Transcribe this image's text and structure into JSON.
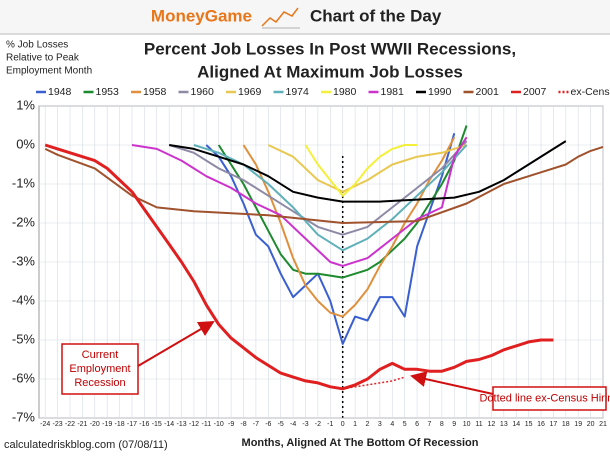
{
  "header": {
    "brand": "MoneyGame",
    "label": "Chart of the Day"
  },
  "chart_data": {
    "type": "line",
    "title": [
      "Percent Job Losses In Post WWII Recessions,",
      "Aligned At Maximum Job Losses"
    ],
    "ylabel": [
      "% Job Losses",
      "Relative to Peak",
      "Employment Month"
    ],
    "xlabel": "Months, Aligned At The Bottom Of Recession",
    "source": "calculatedriskblog.com (07/08/11)",
    "annotations": [
      [
        "Current",
        "Employment",
        "Recession"
      ],
      [
        "Dotted line ex-Census Hiring"
      ]
    ],
    "xlim": [
      -24.5,
      21
    ],
    "ylim": [
      -7,
      1
    ],
    "xticks": [
      -24,
      -23,
      -22,
      -21,
      -20,
      -19,
      -18,
      -17,
      -16,
      -15,
      -14,
      -13,
      -12,
      -11,
      -10,
      -9,
      -8,
      -7,
      -6,
      -5,
      -4,
      -3,
      -2,
      -1,
      0,
      1,
      2,
      3,
      4,
      5,
      6,
      7,
      8,
      9,
      10,
      11,
      12,
      13,
      14,
      15,
      16,
      17,
      18,
      19,
      20,
      21
    ],
    "yticks": [
      {
        "value": 1,
        "label": "1%"
      },
      {
        "value": 0,
        "label": "0%"
      },
      {
        "value": -1,
        "label": "-1%"
      },
      {
        "value": -2,
        "label": "-2%"
      },
      {
        "value": -3,
        "label": "-3%"
      },
      {
        "value": -4,
        "label": "-4%"
      },
      {
        "value": -5,
        "label": "-5%"
      },
      {
        "value": -6,
        "label": "-6%"
      },
      {
        "value": -7,
        "label": "-7%"
      }
    ],
    "grid": true,
    "series": [
      {
        "name": "1948",
        "color": "#3a5fd0",
        "x": [
          -11,
          -10,
          -9,
          -8,
          -7,
          -6,
          -5,
          -4,
          -3,
          -2,
          -1,
          0,
          1,
          2,
          3,
          4,
          5,
          6,
          7,
          8,
          9
        ],
        "values": [
          0,
          -0.3,
          -0.8,
          -1.5,
          -2.3,
          -2.6,
          -3.3,
          -3.9,
          -3.6,
          -3.3,
          -4.0,
          -5.1,
          -4.4,
          -4.5,
          -3.9,
          -3.9,
          -4.4,
          -2.6,
          -1.7,
          -0.8,
          0.3
        ]
      },
      {
        "name": "1953",
        "color": "#1e8a2e",
        "x": [
          -10,
          -9,
          -8,
          -7,
          -6,
          -5,
          -4,
          -3,
          -2,
          -1,
          0,
          1,
          2,
          3,
          4,
          5,
          6,
          7,
          8,
          9,
          10
        ],
        "values": [
          0,
          -0.5,
          -1.0,
          -1.6,
          -2.2,
          -2.8,
          -3.2,
          -3.3,
          -3.3,
          -3.35,
          -3.4,
          -3.3,
          -3.2,
          -3.0,
          -2.7,
          -2.4,
          -2.0,
          -1.5,
          -1.0,
          -0.4,
          0.5
        ]
      },
      {
        "name": "1958",
        "color": "#e0903c",
        "x": [
          -8,
          -7,
          -6,
          -5,
          -4,
          -3,
          -2,
          -1,
          0,
          1,
          2,
          3,
          4,
          5,
          6,
          7,
          8,
          9
        ],
        "values": [
          0,
          -0.5,
          -1.2,
          -2.0,
          -2.9,
          -3.6,
          -4.0,
          -4.3,
          -4.4,
          -4.1,
          -3.7,
          -3.1,
          -2.6,
          -2.0,
          -1.5,
          -0.9,
          -0.4,
          0.2
        ]
      },
      {
        "name": "1960",
        "color": "#8e8aa6",
        "x": [
          -14,
          -12,
          -10,
          -8,
          -6,
          -4,
          -2,
          0,
          2,
          4,
          6,
          8,
          10
        ],
        "values": [
          0,
          -0.2,
          -0.6,
          -0.9,
          -1.3,
          -1.7,
          -2.1,
          -2.3,
          -2.1,
          -1.6,
          -1.1,
          -0.6,
          0.1
        ]
      },
      {
        "name": "1969",
        "color": "#e8c850",
        "x": [
          -6,
          -4,
          -2,
          0,
          2,
          4,
          6,
          8,
          10
        ],
        "values": [
          0,
          -0.3,
          -0.9,
          -1.2,
          -0.9,
          -0.5,
          -0.3,
          -0.2,
          0
        ]
      },
      {
        "name": "1974",
        "color": "#5fb0b8",
        "x": [
          -12,
          -10,
          -8,
          -6,
          -4,
          -2,
          0,
          2,
          4,
          6,
          8,
          10
        ],
        "values": [
          0,
          -0.2,
          -0.5,
          -1.0,
          -1.6,
          -2.3,
          -2.7,
          -2.4,
          -1.9,
          -1.3,
          -0.7,
          0
        ]
      },
      {
        "name": "1980",
        "color": "#f4f03a",
        "x": [
          -3,
          -2,
          -1,
          0,
          1,
          2,
          3,
          4,
          5,
          6
        ],
        "values": [
          0,
          -0.5,
          -0.9,
          -1.3,
          -1.0,
          -0.6,
          -0.3,
          -0.1,
          0,
          0
        ]
      },
      {
        "name": "1981",
        "color": "#cc33cc",
        "x": [
          -17,
          -15,
          -13,
          -11,
          -9,
          -7,
          -5,
          -3,
          -1,
          0,
          2,
          4,
          6,
          8,
          9,
          10
        ],
        "values": [
          0,
          -0.1,
          -0.4,
          -0.8,
          -1.1,
          -1.5,
          -1.8,
          -2.4,
          -3.0,
          -3.1,
          -2.9,
          -2.4,
          -1.9,
          -1.6,
          -0.3,
          0.2
        ]
      },
      {
        "name": "1990",
        "color": "#000000",
        "x": [
          -14,
          -12,
          -10,
          -8,
          -6,
          -4,
          -2,
          0,
          3,
          6,
          9,
          11,
          13,
          15,
          17,
          18
        ],
        "values": [
          0,
          -0.1,
          -0.3,
          -0.5,
          -0.8,
          -1.2,
          -1.35,
          -1.45,
          -1.45,
          -1.4,
          -1.35,
          -1.2,
          -0.9,
          -0.5,
          -0.1,
          0.1
        ]
      },
      {
        "name": "2001",
        "color": "#a0522d",
        "x": [
          -24,
          -23,
          -20,
          -17,
          -15,
          -12,
          -6,
          0,
          6,
          10,
          13,
          16,
          18,
          19,
          20,
          21
        ],
        "values": [
          -0.1,
          -0.25,
          -0.6,
          -1.3,
          -1.6,
          -1.7,
          -1.8,
          -2.0,
          -1.95,
          -1.5,
          -1.0,
          -0.7,
          -0.5,
          -0.3,
          -0.15,
          -0.05
        ]
      },
      {
        "name": "2007",
        "color": "#e02020",
        "x": [
          -24,
          -23,
          -22,
          -21,
          -20,
          -19,
          -18,
          -17,
          -16,
          -15,
          -14,
          -13,
          -12,
          -11,
          -10,
          -9,
          -8,
          -7,
          -6,
          -5,
          -4,
          -3,
          -2,
          -1,
          0,
          1,
          2,
          3,
          4,
          5,
          6,
          7,
          8,
          9,
          10,
          11,
          12,
          13,
          14,
          15,
          16,
          17
        ],
        "values": [
          0,
          -0.1,
          -0.2,
          -0.3,
          -0.4,
          -0.6,
          -0.9,
          -1.2,
          -1.65,
          -2.1,
          -2.55,
          -3.0,
          -3.5,
          -4.1,
          -4.6,
          -4.95,
          -5.2,
          -5.45,
          -5.65,
          -5.85,
          -5.95,
          -6.05,
          -6.1,
          -6.2,
          -6.25,
          -6.15,
          -6.0,
          -5.75,
          -5.6,
          -5.75,
          -5.75,
          -5.8,
          -5.8,
          -5.7,
          -5.55,
          -5.5,
          -5.4,
          -5.25,
          -5.15,
          -5.05,
          -5.0,
          -5.0
        ]
      },
      {
        "name": "ex-Census",
        "color": "#e02020",
        "style": "dotted",
        "x": [
          0,
          1,
          2,
          3,
          4,
          5
        ],
        "values": [
          -6.25,
          -6.2,
          -6.15,
          -6.1,
          -6.05,
          -5.95
        ]
      }
    ]
  }
}
